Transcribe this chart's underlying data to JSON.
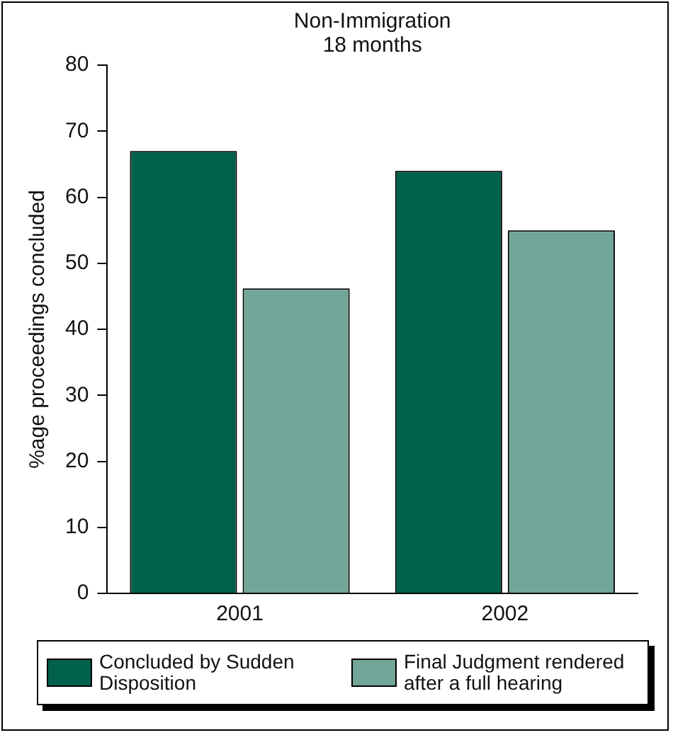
{
  "chart_data": {
    "type": "bar",
    "title": "Non-Immigration",
    "subtitle": "18 months",
    "ylabel": "%age proceedings concluded",
    "categories": [
      "2001",
      "2002"
    ],
    "series": [
      {
        "name": "Concluded by Sudden Disposition",
        "color": "#00614c",
        "values": [
          67,
          64
        ]
      },
      {
        "name": "Final Judgment rendered after a full hearing",
        "color": "#72a698",
        "values": [
          46.2,
          55
        ]
      }
    ],
    "ylim": [
      0,
      80
    ],
    "yticks": [
      0,
      10,
      20,
      30,
      40,
      50,
      60,
      70,
      80
    ],
    "grid": false,
    "legend": "bottom"
  }
}
